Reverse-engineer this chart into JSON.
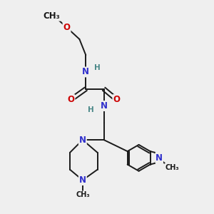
{
  "bg_color": "#efefef",
  "bond_color": "#1a1a1a",
  "N_color": "#3030cc",
  "O_color": "#cc0000",
  "H_color": "#4a8888",
  "font_size_atom": 8.5,
  "fig_size": [
    3.0,
    3.0
  ],
  "dpi": 100,
  "xlim": [
    0,
    10
  ],
  "ylim": [
    0,
    10
  ]
}
